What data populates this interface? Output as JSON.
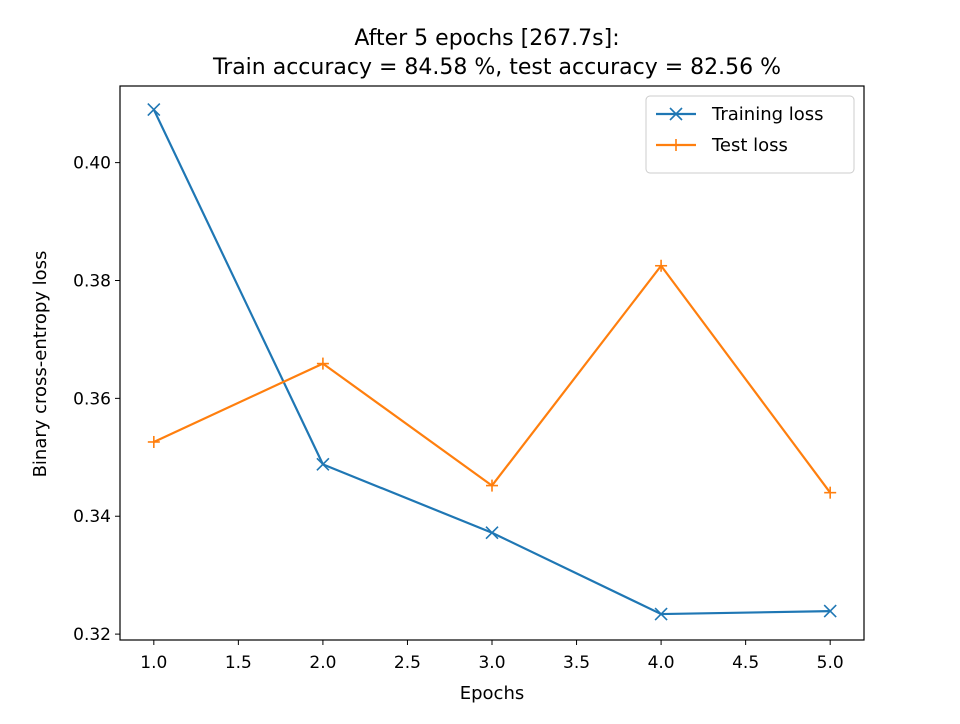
{
  "chart_data": {
    "type": "line",
    "title": "After 5 epochs [267.7s]:",
    "subtitle": "Train accuracy = 84.58 %, test accuracy = 82.56 %",
    "xlabel": "Epochs",
    "ylabel": "Binary cross-entropy loss",
    "xlim": [
      0.8,
      5.2
    ],
    "ylim": [
      0.319,
      0.413
    ],
    "x_ticks": [
      1.0,
      1.5,
      2.0,
      2.5,
      3.0,
      3.5,
      4.0,
      4.5,
      5.0
    ],
    "x_tick_labels": [
      "1.0",
      "1.5",
      "2.0",
      "2.5",
      "3.0",
      "3.5",
      "4.0",
      "4.5",
      "5.0"
    ],
    "y_ticks": [
      0.32,
      0.34,
      0.36,
      0.38,
      0.4
    ],
    "y_tick_labels": [
      "0.32",
      "0.34",
      "0.36",
      "0.38",
      "0.40"
    ],
    "grid": false,
    "legend_position": "top-right",
    "x": [
      1,
      2,
      3,
      4,
      5
    ],
    "series": [
      {
        "name": "Training loss",
        "color": "#1f77b4",
        "marker": "x",
        "values": [
          0.409,
          0.3488,
          0.3372,
          0.3234,
          0.3239
        ]
      },
      {
        "name": "Test loss",
        "color": "#ff7f0e",
        "marker": "+",
        "values": [
          0.3526,
          0.3659,
          0.3452,
          0.3825,
          0.344
        ]
      }
    ]
  }
}
